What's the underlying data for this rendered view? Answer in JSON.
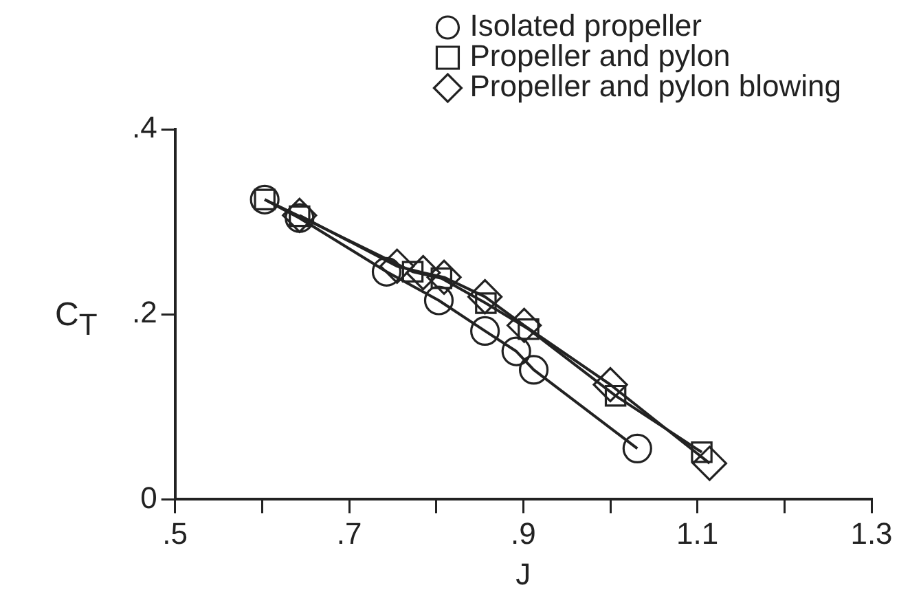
{
  "chart_data": {
    "type": "line",
    "xlabel": "J",
    "ylabel": "C$_{T}$",
    "xlim": [
      0.5,
      1.3
    ],
    "ylim": [
      0,
      0.4
    ],
    "xticks": [
      {
        "value": 0.5,
        "label": ".5"
      },
      {
        "value": 0.6,
        "label": null
      },
      {
        "value": 0.7,
        "label": ".7"
      },
      {
        "value": 0.8,
        "label": null
      },
      {
        "value": 0.9,
        "label": ".9"
      },
      {
        "value": 1.0,
        "label": null
      },
      {
        "value": 1.1,
        "label": "1.1"
      },
      {
        "value": 1.2,
        "label": null
      },
      {
        "value": 1.3,
        "label": "1.3"
      }
    ],
    "yticks": [
      0,
      {
        "value": 0.2,
        "label": ".2"
      },
      {
        "value": 0.4,
        "label": ".4"
      }
    ],
    "grid": false,
    "legend": "top right",
    "line_style": "solid",
    "series": [
      {
        "name": "Isolated propeller",
        "color": "#222222",
        "marker": "circle",
        "x": [
          0.603,
          0.643,
          0.743,
          0.803,
          0.856,
          0.892,
          0.912,
          1.031
        ],
        "values": [
          0.324,
          0.304,
          0.246,
          0.215,
          0.182,
          0.16,
          0.14,
          0.055
        ]
      },
      {
        "name": "Propeller and pylon",
        "color": "#222222",
        "marker": "square",
        "x": [
          0.603,
          0.643,
          0.773,
          0.806,
          0.857,
          0.906,
          1.006,
          1.105
        ],
        "values": [
          0.324,
          0.306,
          0.246,
          0.239,
          0.212,
          0.184,
          0.112,
          0.051
        ]
      },
      {
        "name": "Propeller and pylon blowing",
        "color": "#222222",
        "marker": "diamond",
        "x": [
          0.643,
          0.755,
          0.785,
          0.809,
          0.856,
          0.901,
          1.0,
          1.114
        ],
        "values": [
          0.307,
          0.252,
          0.245,
          0.24,
          0.219,
          0.188,
          0.124,
          0.039
        ]
      }
    ]
  }
}
